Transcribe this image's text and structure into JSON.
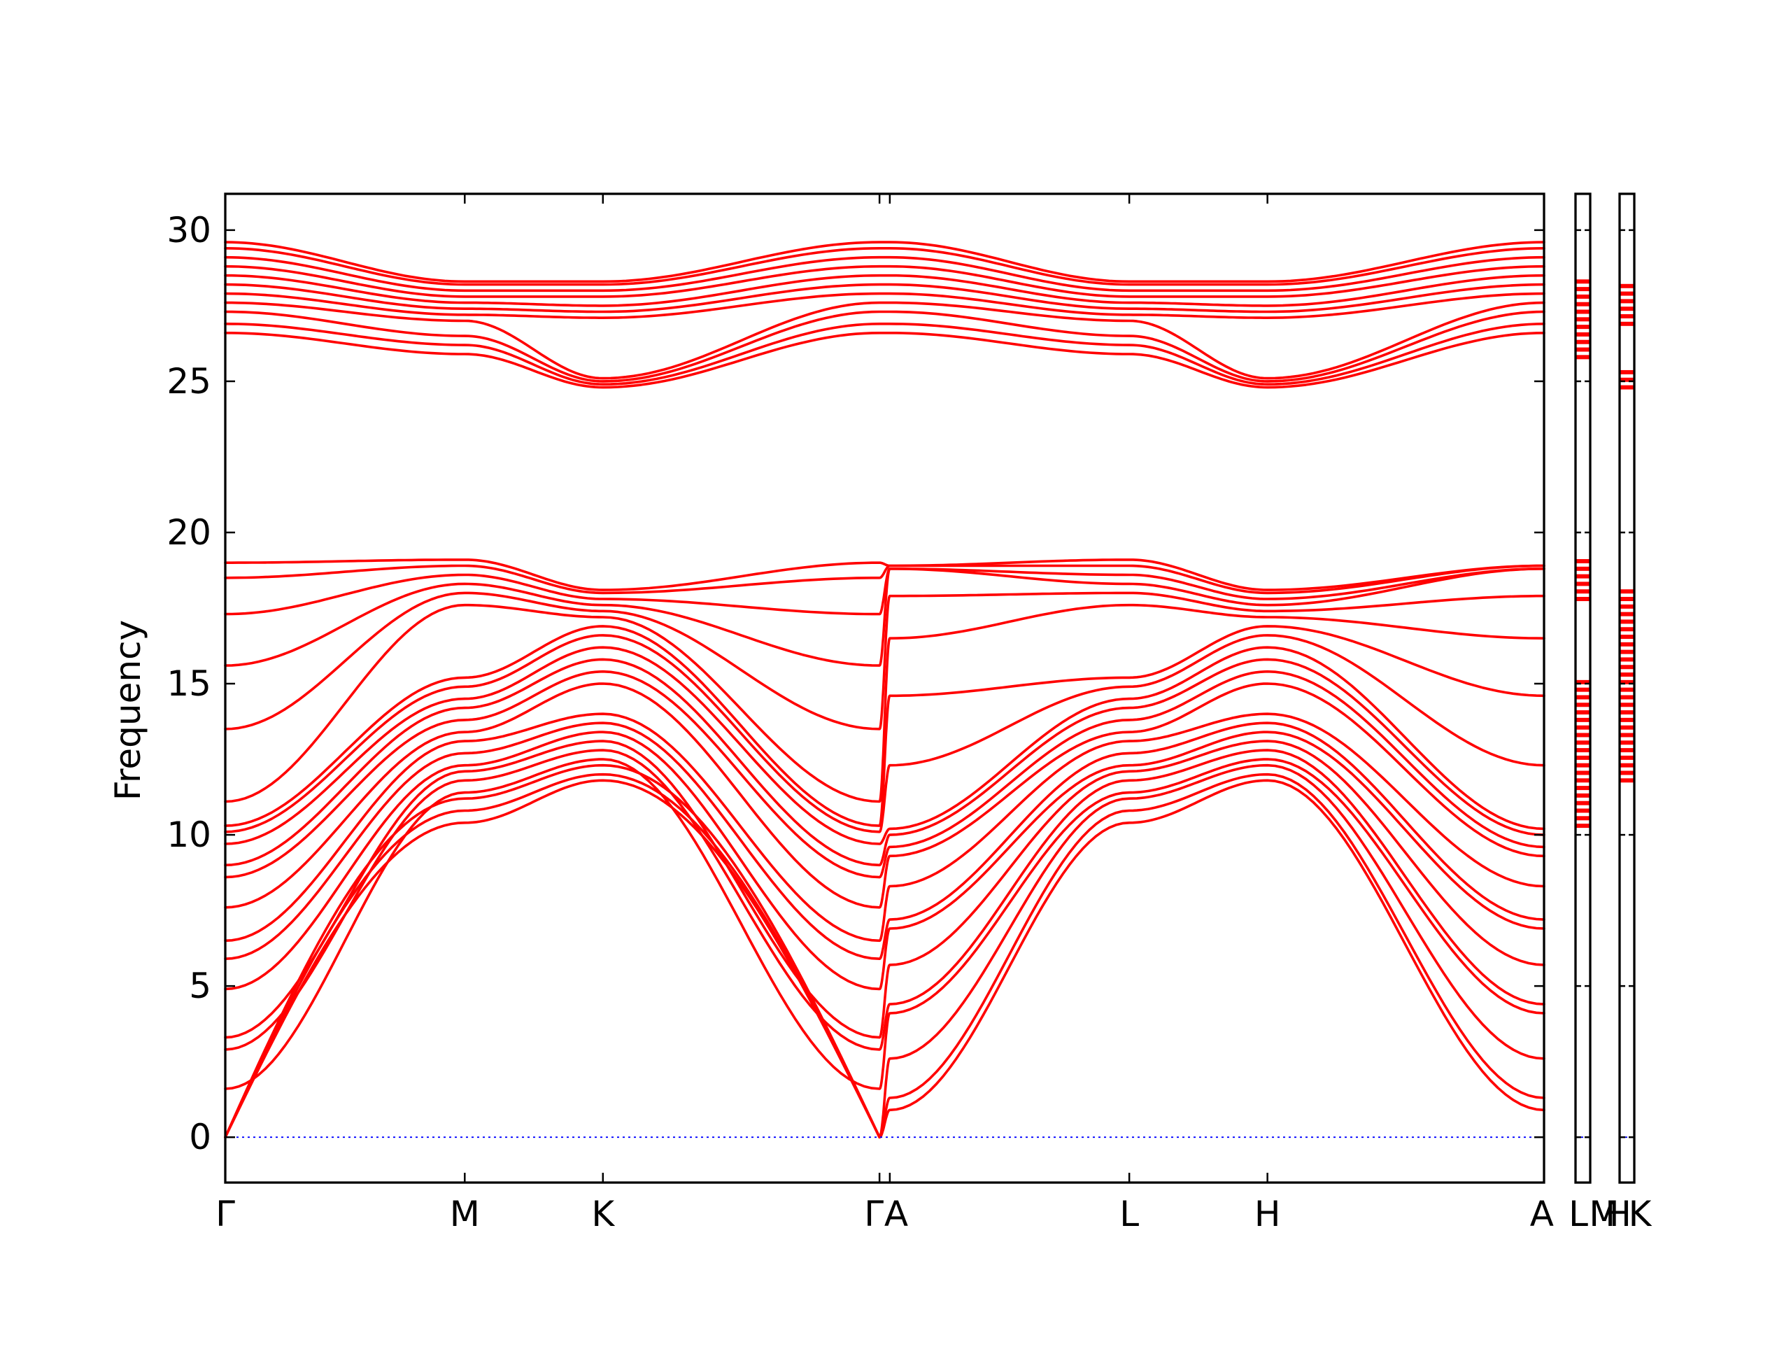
{
  "chart_data": {
    "type": "line",
    "title": "",
    "ylabel": "Frequency",
    "xlabel": "",
    "ylim": [
      -1.5,
      31.2
    ],
    "yticks": [
      0,
      5,
      10,
      15,
      20,
      25,
      30
    ],
    "grid": false,
    "legend": "none",
    "colors": {
      "band": "#ff0000",
      "zero_line": "#0000ff",
      "axes": "#000000"
    },
    "path": [
      {
        "label": "Γ",
        "x": 0.0
      },
      {
        "label": "M",
        "x": 1.0
      },
      {
        "label": "K",
        "x": 1.577
      },
      {
        "label": "Γ",
        "x": 2.732
      },
      {
        "label": "A",
        "x": 2.775
      },
      {
        "label": "L",
        "x": 3.775
      },
      {
        "label": "H",
        "x": 4.352
      },
      {
        "label": "A",
        "x": 5.507
      }
    ],
    "extra_panels": [
      {
        "labels": [
          "L",
          "M"
        ],
        "dos_bands": [
          [
            10.3,
            15.2
          ],
          [
            17.8,
            19.1
          ],
          [
            25.8,
            28.4
          ]
        ]
      },
      {
        "labels": [
          "H",
          "K"
        ],
        "dos_bands": [
          [
            11.8,
            18.1
          ],
          [
            24.8,
            25.3
          ],
          [
            26.9,
            28.3
          ]
        ]
      }
    ],
    "groups": [
      {
        "name": "acoustic",
        "gamma": [
          0.0,
          0.0,
          0.0
        ],
        "M": [
          10.4,
          10.8,
          11.2
        ],
        "K": [
          11.8,
          12.0,
          12.3
        ],
        "A": [
          0.9,
          1.3,
          2.6
        ],
        "L": [
          10.4,
          10.8,
          11.2
        ],
        "H": [
          11.8,
          12.0,
          12.3
        ]
      },
      {
        "name": "optical-low",
        "gamma": [
          1.6,
          2.9,
          3.3,
          4.9,
          5.9,
          6.5,
          7.6,
          8.6,
          9.0,
          9.7,
          10.1,
          10.3,
          11.1,
          13.5,
          15.6,
          17.3,
          18.5,
          19.0
        ],
        "M": [
          11.4,
          11.8,
          12.1,
          12.3,
          12.7,
          13.1,
          13.4,
          13.8,
          14.2,
          14.5,
          14.9,
          15.2,
          17.6,
          18.0,
          18.3,
          18.6,
          18.9,
          19.1
        ],
        "K": [
          12.5,
          12.8,
          13.1,
          13.4,
          13.7,
          14.0,
          15.0,
          15.4,
          15.8,
          16.2,
          16.6,
          16.9,
          17.2,
          17.4,
          17.6,
          17.8,
          18.0,
          18.1
        ],
        "A": [
          4.1,
          4.4,
          5.7,
          6.9,
          7.2,
          8.3,
          9.3,
          9.6,
          10.0,
          10.2,
          12.3,
          14.6,
          16.5,
          17.9,
          18.8,
          18.8,
          18.9,
          18.9
        ],
        "L": [
          11.4,
          11.8,
          12.1,
          12.3,
          12.7,
          13.1,
          13.4,
          13.8,
          14.2,
          14.5,
          14.9,
          15.2,
          17.6,
          18.0,
          18.3,
          18.6,
          18.9,
          19.1
        ],
        "H": [
          12.5,
          12.8,
          13.1,
          13.4,
          13.7,
          14.0,
          15.0,
          15.4,
          15.8,
          16.2,
          16.6,
          16.9,
          17.2,
          17.4,
          17.6,
          17.8,
          18.0,
          18.1
        ]
      },
      {
        "name": "optical-high",
        "gamma": [
          26.6,
          26.9,
          27.3,
          27.6,
          27.9,
          28.2,
          28.5,
          28.8,
          29.1,
          29.4,
          29.6
        ],
        "M": [
          25.9,
          26.2,
          26.5,
          27.0,
          27.2,
          27.4,
          27.6,
          27.8,
          28.0,
          28.2,
          28.3
        ],
        "K": [
          24.8,
          24.9,
          25.0,
          25.1,
          27.1,
          27.3,
          27.5,
          27.8,
          28.0,
          28.2,
          28.3
        ],
        "A": [
          26.6,
          26.9,
          27.3,
          27.6,
          27.9,
          28.2,
          28.5,
          28.8,
          29.1,
          29.4,
          29.6
        ],
        "L": [
          25.9,
          26.2,
          26.5,
          27.0,
          27.2,
          27.4,
          27.6,
          27.8,
          28.0,
          28.2,
          28.3
        ],
        "H": [
          24.8,
          24.9,
          25.0,
          25.1,
          27.1,
          27.3,
          27.5,
          27.8,
          28.0,
          28.2,
          28.3
        ]
      }
    ]
  }
}
